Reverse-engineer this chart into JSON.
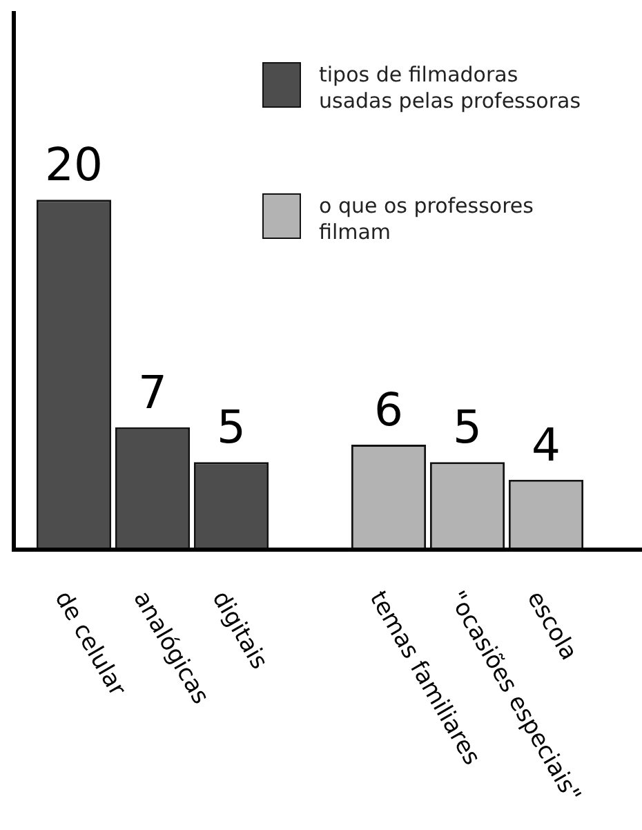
{
  "chart_data": {
    "type": "bar",
    "categories": [
      "de celular",
      "analógicas",
      "digitais",
      null,
      "temas familiares",
      "\"ocasiões especiais\"",
      "escola"
    ],
    "series": [
      {
        "name": "tipos de filmadoras usadas pelas professoras",
        "color": "#4d4d4d",
        "values": [
          20,
          7,
          5,
          null,
          null,
          null,
          null
        ]
      },
      {
        "name": "o que os professores filmam",
        "color": "#b3b3b3",
        "values": [
          null,
          null,
          null,
          null,
          6,
          5,
          4
        ]
      }
    ],
    "data_labels": true,
    "legend": "top right"
  }
}
